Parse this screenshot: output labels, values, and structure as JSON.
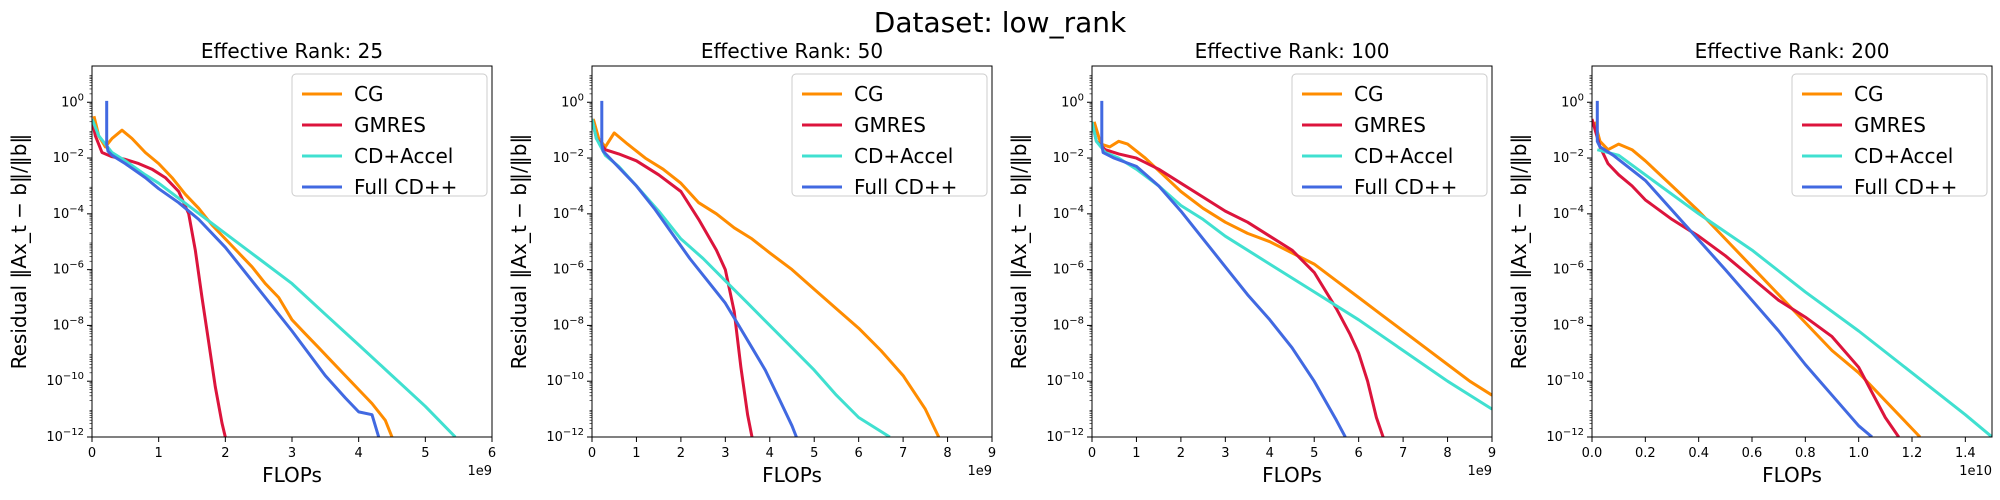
{
  "suptitle": "Dataset: low_rank",
  "chart_data": [
    {
      "type": "line",
      "title": "Effective Rank: 25",
      "xlabel": "FLOPs",
      "ylabel": "Residual ‖Ax_t − b‖/‖b‖",
      "x_offset_label": "1e9",
      "xlim": [
        0,
        6
      ],
      "ylim_log10": [
        -12,
        1.3
      ],
      "y_scale": "log",
      "xticks": [
        0,
        1,
        2,
        3,
        4,
        5,
        6
      ],
      "xtick_labels": [
        "0",
        "1",
        "2",
        "3",
        "4",
        "5",
        "6"
      ],
      "yticks_log10": [
        0,
        -2,
        -4,
        -6,
        -8,
        -10,
        -12
      ],
      "legend_position": "upper right",
      "series": [
        {
          "name": "CG",
          "color": "#ff8c00",
          "x": [
            0.03,
            0.1,
            0.2,
            0.3,
            0.45,
            0.6,
            0.8,
            1.0,
            1.2,
            1.4,
            1.6,
            1.8,
            2.0,
            2.2,
            2.4,
            2.6,
            2.8,
            3.0,
            3.2,
            3.4,
            3.6,
            3.8,
            4.0,
            4.2,
            4.4,
            4.5
          ],
          "y": [
            -0.5,
            -1.2,
            -1.6,
            -1.3,
            -1.0,
            -1.3,
            -1.8,
            -2.2,
            -2.7,
            -3.3,
            -3.8,
            -4.4,
            -4.9,
            -5.4,
            -5.9,
            -6.5,
            -7.0,
            -7.8,
            -8.3,
            -8.8,
            -9.3,
            -9.8,
            -10.3,
            -10.8,
            -11.4,
            -12.0
          ]
        },
        {
          "name": "GMRES",
          "color": "#dc143c",
          "x": [
            0.0,
            0.05,
            0.15,
            0.3,
            0.5,
            0.7,
            0.9,
            1.1,
            1.3,
            1.45,
            1.55,
            1.65,
            1.75,
            1.85,
            1.95,
            2.0
          ],
          "y": [
            -0.6,
            -1.2,
            -1.8,
            -1.95,
            -2.05,
            -2.2,
            -2.4,
            -2.7,
            -3.2,
            -4.0,
            -5.3,
            -7.0,
            -8.6,
            -10.2,
            -11.5,
            -12.0
          ]
        },
        {
          "name": "CD+Accel",
          "color": "#40e0d0",
          "x": [
            0.0,
            0.1,
            0.3,
            0.5,
            0.8,
            1.0,
            1.5,
            2.0,
            2.5,
            3.0,
            3.5,
            4.0,
            4.5,
            5.0,
            5.45
          ],
          "y": [
            -0.6,
            -1.2,
            -1.8,
            -2.1,
            -2.6,
            -2.9,
            -3.8,
            -4.7,
            -5.6,
            -6.5,
            -7.6,
            -8.7,
            -9.8,
            -10.9,
            -12.0
          ]
        },
        {
          "name": "Full CD++",
          "color": "#4169e1",
          "x": [
            0.22,
            0.22,
            0.24,
            0.3,
            0.5,
            0.8,
            1.0,
            1.3,
            1.6,
            2.0,
            2.5,
            3.0,
            3.5,
            3.8,
            4.0,
            4.2,
            4.3
          ],
          "y": [
            0.05,
            -1.5,
            -1.75,
            -1.9,
            -2.2,
            -2.7,
            -3.1,
            -3.6,
            -4.2,
            -5.2,
            -6.7,
            -8.2,
            -9.8,
            -10.6,
            -11.1,
            -11.2,
            -12.0
          ]
        }
      ]
    },
    {
      "type": "line",
      "title": "Effective Rank: 50",
      "xlabel": "FLOPs",
      "ylabel": "Residual ‖Ax_t − b‖/‖b‖",
      "x_offset_label": "1e9",
      "xlim": [
        0,
        9
      ],
      "ylim_log10": [
        -12,
        1.3
      ],
      "y_scale": "log",
      "xticks": [
        0,
        1,
        2,
        3,
        4,
        5,
        6,
        7,
        8,
        9
      ],
      "xtick_labels": [
        "0",
        "1",
        "2",
        "3",
        "4",
        "5",
        "6",
        "7",
        "8",
        "9"
      ],
      "yticks_log10": [
        0,
        -2,
        -4,
        -6,
        -8,
        -10,
        -12
      ],
      "legend_position": "upper right",
      "series": [
        {
          "name": "CG",
          "color": "#ff8c00",
          "x": [
            0.03,
            0.15,
            0.3,
            0.5,
            0.8,
            1.2,
            1.6,
            2.0,
            2.4,
            2.8,
            3.2,
            3.6,
            4.0,
            4.5,
            5.0,
            5.5,
            6.0,
            6.5,
            7.0,
            7.5,
            7.8
          ],
          "y": [
            -0.6,
            -1.3,
            -1.6,
            -1.1,
            -1.5,
            -2.0,
            -2.4,
            -2.9,
            -3.6,
            -4.0,
            -4.5,
            -4.9,
            -5.4,
            -6.0,
            -6.7,
            -7.4,
            -8.1,
            -8.9,
            -9.8,
            -11.0,
            -12.0
          ]
        },
        {
          "name": "GMRES",
          "color": "#dc143c",
          "x": [
            0.0,
            0.1,
            0.3,
            0.6,
            1.0,
            1.5,
            2.0,
            2.4,
            2.8,
            3.0,
            3.2,
            3.35,
            3.5,
            3.6
          ],
          "y": [
            -0.6,
            -1.3,
            -1.7,
            -1.85,
            -2.1,
            -2.6,
            -3.2,
            -4.2,
            -5.3,
            -6.0,
            -7.5,
            -9.5,
            -11.2,
            -12.0
          ]
        },
        {
          "name": "CD+Accel",
          "color": "#40e0d0",
          "x": [
            0.0,
            0.1,
            0.3,
            0.6,
            1.0,
            1.5,
            2.0,
            2.5,
            3.0,
            3.5,
            4.0,
            4.5,
            5.0,
            5.5,
            6.0,
            6.7
          ],
          "y": [
            -0.6,
            -1.3,
            -1.9,
            -2.3,
            -3.0,
            -3.9,
            -4.9,
            -5.6,
            -6.4,
            -7.2,
            -8.0,
            -8.8,
            -9.6,
            -10.5,
            -11.3,
            -12.0
          ]
        },
        {
          "name": "Full CD++",
          "color": "#4169e1",
          "x": [
            0.22,
            0.22,
            0.25,
            0.4,
            0.7,
            1.0,
            1.4,
            1.8,
            2.2,
            2.6,
            3.0,
            3.3,
            3.6,
            3.9,
            4.2,
            4.5,
            4.6
          ],
          "y": [
            0.05,
            -1.5,
            -1.75,
            -2.0,
            -2.5,
            -3.0,
            -3.8,
            -4.7,
            -5.6,
            -6.4,
            -7.2,
            -8.0,
            -8.8,
            -9.6,
            -10.6,
            -11.6,
            -12.0
          ]
        }
      ]
    },
    {
      "type": "line",
      "title": "Effective Rank: 100",
      "xlabel": "FLOPs",
      "ylabel": "Residual ‖Ax_t − b‖/‖b‖",
      "x_offset_label": "1e9",
      "xlim": [
        0,
        9
      ],
      "ylim_log10": [
        -12,
        1.3
      ],
      "y_scale": "log",
      "xticks": [
        0,
        1,
        2,
        3,
        4,
        5,
        6,
        7,
        8,
        9
      ],
      "xtick_labels": [
        "0",
        "1",
        "2",
        "3",
        "4",
        "5",
        "6",
        "7",
        "8",
        "9"
      ],
      "yticks_log10": [
        0,
        -2,
        -4,
        -6,
        -8,
        -10,
        -12
      ],
      "legend_position": "upper right",
      "series": [
        {
          "name": "CG",
          "color": "#ff8c00",
          "x": [
            0.05,
            0.2,
            0.4,
            0.6,
            0.8,
            1.2,
            1.6,
            2.0,
            2.5,
            3.0,
            3.5,
            4.0,
            4.5,
            5.0,
            5.5,
            6.0,
            6.5,
            7.0,
            7.5,
            8.0,
            8.5,
            9.0
          ],
          "y": [
            -0.7,
            -1.5,
            -1.6,
            -1.4,
            -1.5,
            -2.0,
            -2.6,
            -3.2,
            -3.8,
            -4.3,
            -4.7,
            -5.0,
            -5.4,
            -5.8,
            -6.4,
            -7.0,
            -7.6,
            -8.2,
            -8.8,
            -9.4,
            -10.0,
            -10.5
          ]
        },
        {
          "name": "GMRES",
          "color": "#dc143c",
          "x": [
            0.0,
            0.1,
            0.3,
            0.6,
            1.0,
            1.5,
            2.0,
            2.5,
            3.0,
            3.5,
            4.0,
            4.5,
            5.0,
            5.5,
            5.8,
            6.0,
            6.2,
            6.4,
            6.55
          ],
          "y": [
            -0.7,
            -1.4,
            -1.7,
            -1.85,
            -2.0,
            -2.4,
            -2.9,
            -3.4,
            -3.9,
            -4.3,
            -4.8,
            -5.3,
            -6.1,
            -7.4,
            -8.3,
            -9.0,
            -10.0,
            -11.3,
            -12.0
          ]
        },
        {
          "name": "CD+Accel",
          "color": "#40e0d0",
          "x": [
            0.0,
            0.1,
            0.3,
            0.6,
            1.0,
            1.5,
            2.0,
            2.5,
            3.0,
            4.0,
            5.0,
            6.0,
            7.0,
            8.0,
            9.0
          ],
          "y": [
            -0.7,
            -1.4,
            -1.8,
            -2.0,
            -2.4,
            -3.0,
            -3.7,
            -4.2,
            -4.8,
            -5.8,
            -6.8,
            -7.8,
            -8.9,
            -10.0,
            -11.0
          ]
        },
        {
          "name": "Full CD++",
          "color": "#4169e1",
          "x": [
            0.22,
            0.22,
            0.25,
            0.5,
            1.0,
            1.5,
            2.0,
            2.5,
            3.0,
            3.5,
            4.0,
            4.5,
            5.0,
            5.5,
            5.7
          ],
          "y": [
            0.05,
            -1.5,
            -1.8,
            -2.0,
            -2.3,
            -3.0,
            -3.9,
            -4.9,
            -5.9,
            -6.9,
            -7.8,
            -8.8,
            -10.0,
            -11.4,
            -12.0
          ]
        }
      ]
    },
    {
      "type": "line",
      "title": "Effective Rank: 200",
      "xlabel": "FLOPs",
      "ylabel": "Residual ‖Ax_t − b‖/‖b‖",
      "x_offset_label": "1e10",
      "xlim": [
        0,
        1.5
      ],
      "ylim_log10": [
        -12,
        1.3
      ],
      "y_scale": "log",
      "xticks": [
        0,
        0.2,
        0.4,
        0.6,
        0.8,
        1.0,
        1.2,
        1.4
      ],
      "xtick_labels": [
        "0.0",
        "0.2",
        "0.4",
        "0.6",
        "0.8",
        "1.0",
        "1.2",
        "1.4"
      ],
      "yticks_log10": [
        0,
        -2,
        -4,
        -6,
        -8,
        -10,
        -12
      ],
      "legend_position": "upper right",
      "series": [
        {
          "name": "CG",
          "color": "#ff8c00",
          "x": [
            0.01,
            0.03,
            0.06,
            0.1,
            0.15,
            0.2,
            0.3,
            0.4,
            0.5,
            0.6,
            0.7,
            0.8,
            0.9,
            1.0,
            1.1,
            1.2,
            1.23
          ],
          "y": [
            -0.7,
            -1.4,
            -1.7,
            -1.5,
            -1.7,
            -2.1,
            -3.0,
            -3.9,
            -4.9,
            -5.9,
            -6.9,
            -7.9,
            -8.9,
            -9.7,
            -10.7,
            -11.7,
            -12.0
          ]
        },
        {
          "name": "GMRES",
          "color": "#dc143c",
          "x": [
            0.0,
            0.03,
            0.06,
            0.1,
            0.15,
            0.2,
            0.3,
            0.4,
            0.5,
            0.6,
            0.7,
            0.8,
            0.9,
            1.0,
            1.05,
            1.1,
            1.15
          ],
          "y": [
            -0.6,
            -1.6,
            -2.2,
            -2.6,
            -3.0,
            -3.5,
            -4.2,
            -4.8,
            -5.5,
            -6.3,
            -7.1,
            -7.7,
            -8.4,
            -9.5,
            -10.4,
            -11.3,
            -12.0
          ]
        },
        {
          "name": "CD+Accel",
          "color": "#40e0d0",
          "x": [
            0.02,
            0.1,
            0.2,
            0.4,
            0.6,
            0.8,
            1.0,
            1.2,
            1.4,
            1.5
          ],
          "y": [
            -1.7,
            -1.9,
            -2.6,
            -4.0,
            -5.3,
            -6.8,
            -8.2,
            -9.7,
            -11.2,
            -12.0
          ]
        },
        {
          "name": "Full CD++",
          "color": "#4169e1",
          "x": [
            0.02,
            0.02,
            0.03,
            0.08,
            0.2,
            0.35,
            0.5,
            0.6,
            0.7,
            0.8,
            0.9,
            1.0,
            1.05
          ],
          "y": [
            0.05,
            -1.4,
            -1.6,
            -1.9,
            -2.8,
            -4.4,
            -6.0,
            -7.1,
            -8.2,
            -9.4,
            -10.5,
            -11.6,
            -12.0
          ]
        }
      ]
    }
  ]
}
